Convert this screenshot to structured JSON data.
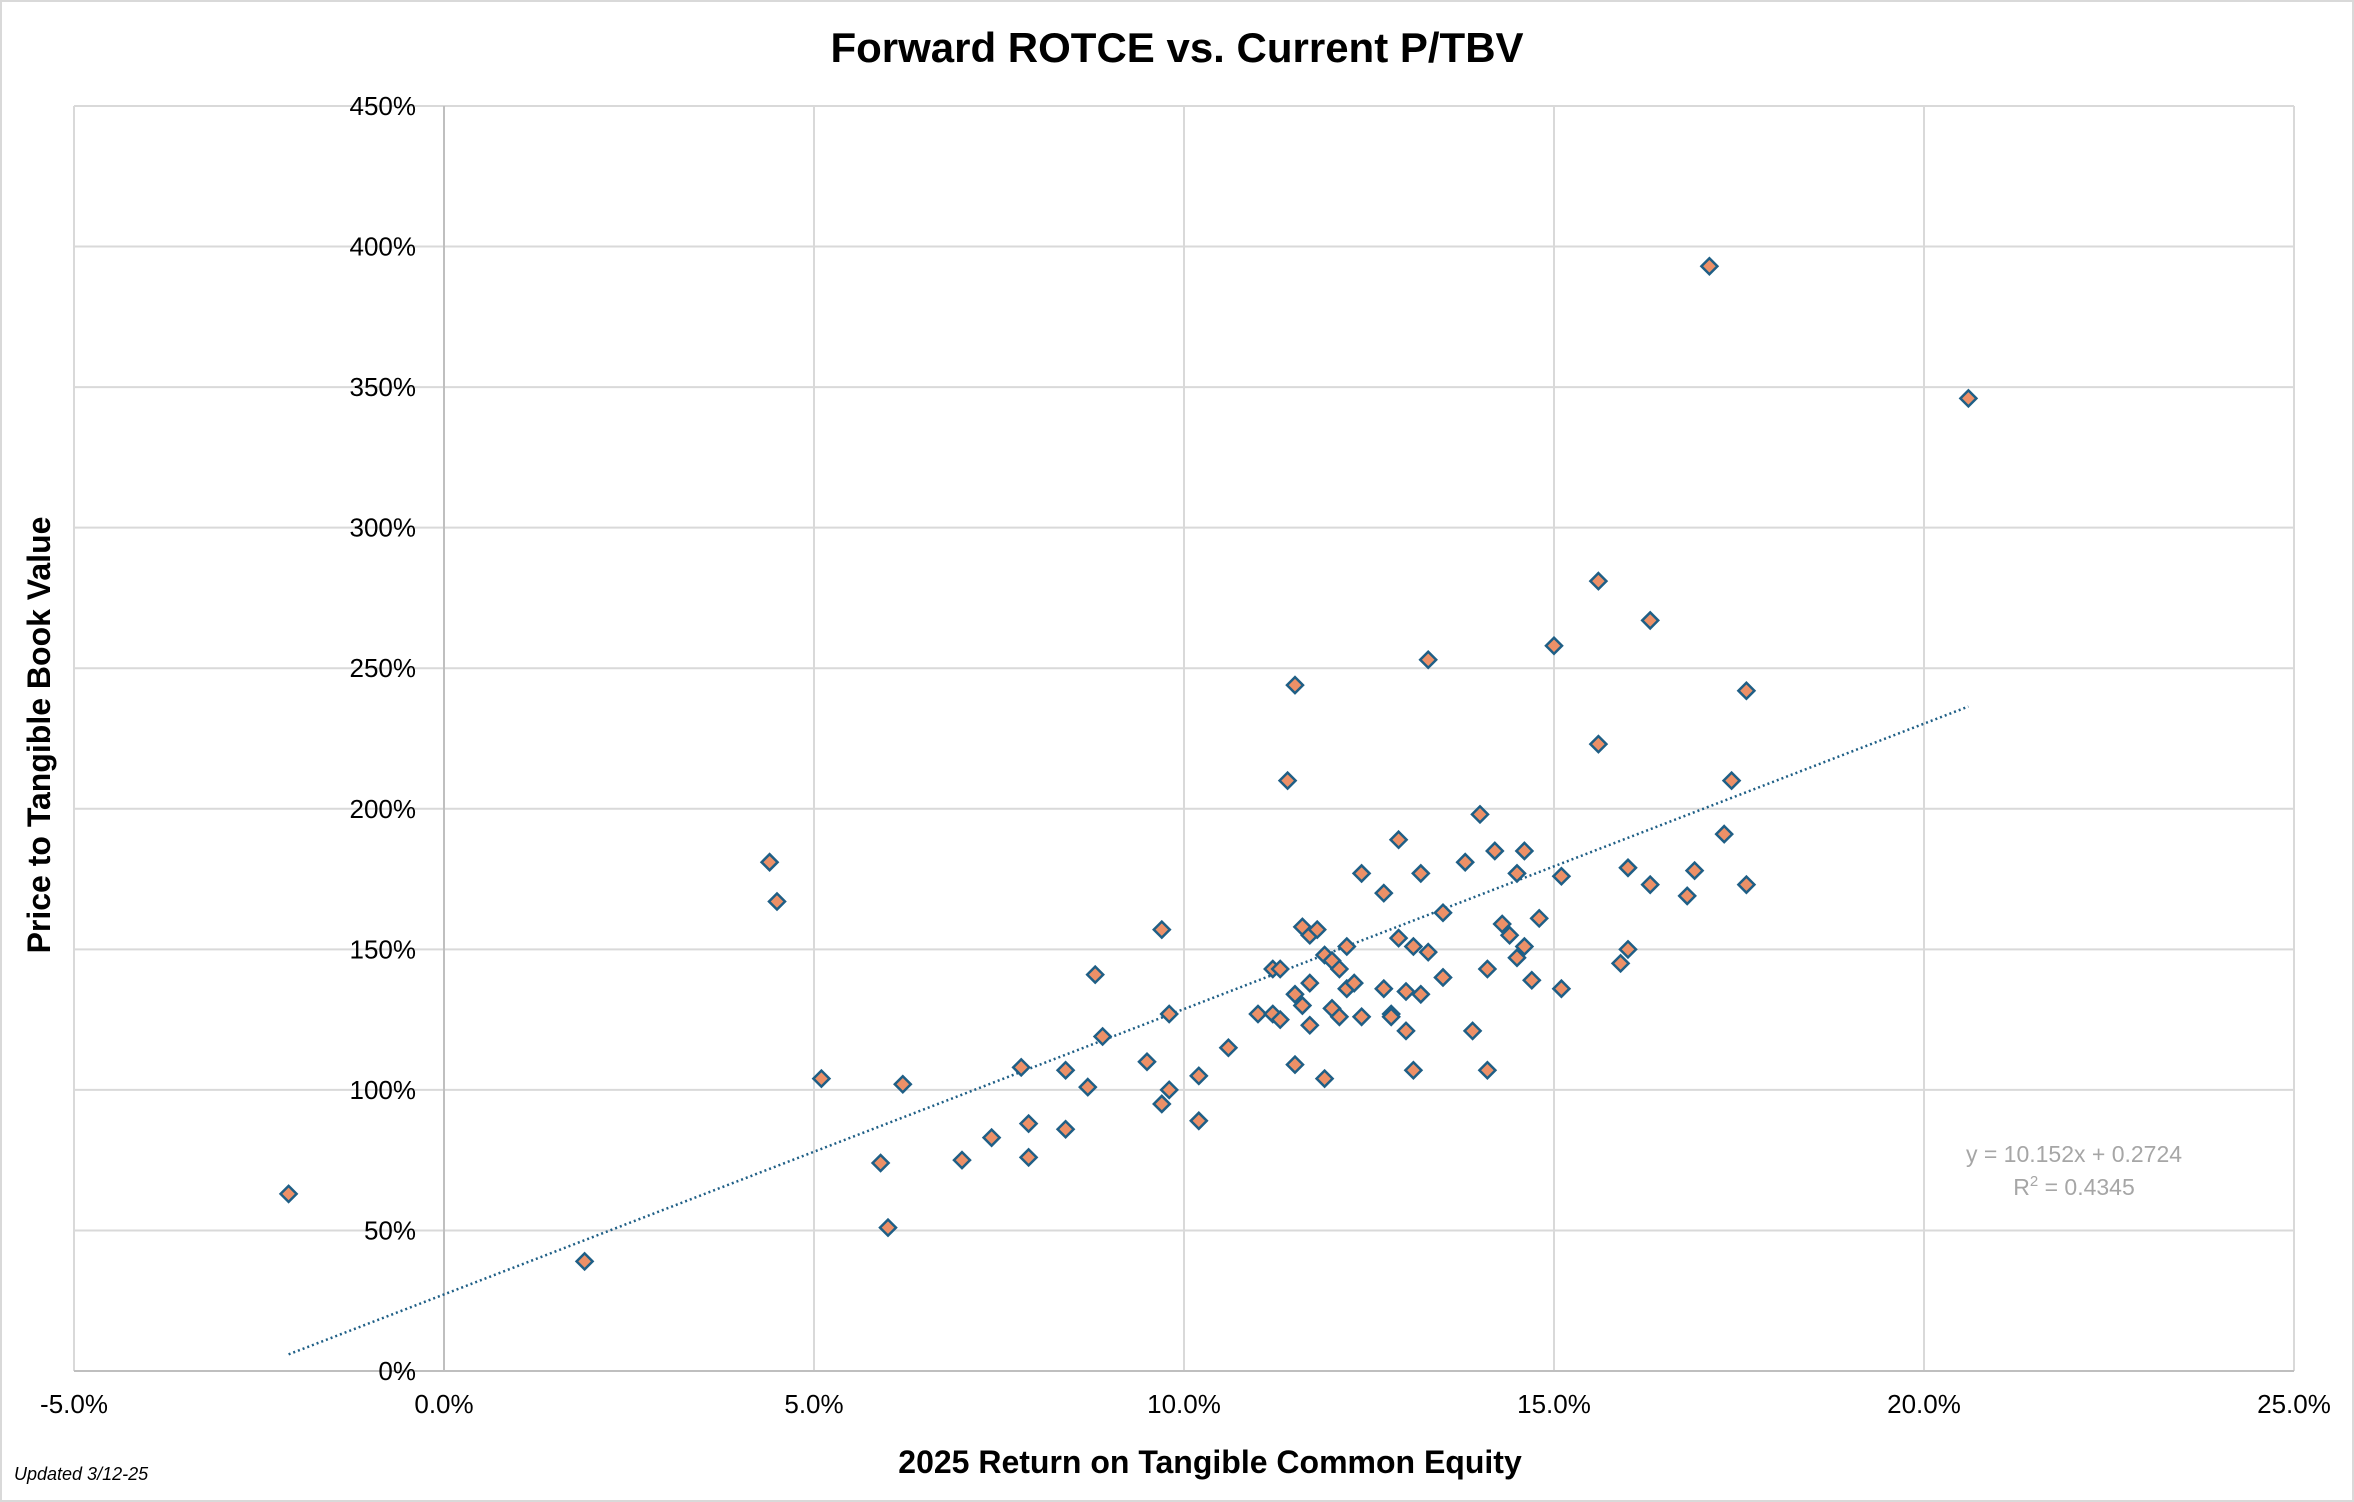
{
  "chart_data": {
    "type": "scatter",
    "title": "Forward ROTCE vs. Current P/TBV",
    "xlabel": "2025 Return on Tangible Common Equity",
    "ylabel": "Price to Tangible Book Value",
    "xlim": [
      -0.05,
      0.25
    ],
    "ylim": [
      0,
      4.5
    ],
    "x_ticks": [
      -0.05,
      0,
      0.05,
      0.1,
      0.15,
      0.2,
      0.25
    ],
    "x_tick_labels": [
      "-5.0%",
      "0.0%",
      "5.0%",
      "10.0%",
      "15.0%",
      "20.0%",
      "25.0%"
    ],
    "y_ticks": [
      0,
      0.5,
      1.0,
      1.5,
      2.0,
      2.5,
      3.0,
      3.5,
      4.0,
      4.5
    ],
    "y_tick_labels": [
      "0%",
      "50%",
      "100%",
      "150%",
      "200%",
      "250%",
      "300%",
      "350%",
      "400%",
      "450%"
    ],
    "grid": true,
    "marker": "diamond",
    "marker_fill": "#ed9067",
    "marker_stroke": "#1f5f86",
    "trendline_color": "#1f5f86",
    "trendline": {
      "type": "linear",
      "slope": 10.152,
      "intercept": 0.2724,
      "x_range": [
        -0.021,
        0.206
      ],
      "style": "dotted",
      "equation": "y = 10.152x + 0.2724",
      "r2_prefix": "R",
      "r2_sup": "2",
      "r2_suffix": " = 0.4345"
    },
    "series": [
      {
        "points": [
          [
            -0.021,
            0.63
          ],
          [
            0.019,
            0.39
          ],
          [
            0.044,
            1.81
          ],
          [
            0.045,
            1.67
          ],
          [
            0.051,
            1.04
          ],
          [
            0.059,
            0.74
          ],
          [
            0.06,
            0.51
          ],
          [
            0.062,
            1.02
          ],
          [
            0.07,
            0.75
          ],
          [
            0.074,
            0.83
          ],
          [
            0.078,
            1.08
          ],
          [
            0.079,
            0.88
          ],
          [
            0.079,
            0.76
          ],
          [
            0.084,
            1.07
          ],
          [
            0.084,
            0.86
          ],
          [
            0.087,
            1.01
          ],
          [
            0.088,
            1.41
          ],
          [
            0.089,
            1.19
          ],
          [
            0.095,
            1.1
          ],
          [
            0.097,
            1.57
          ],
          [
            0.097,
            0.95
          ],
          [
            0.098,
            1.0
          ],
          [
            0.098,
            1.27
          ],
          [
            0.102,
            1.05
          ],
          [
            0.102,
            0.89
          ],
          [
            0.106,
            1.15
          ],
          [
            0.11,
            1.27
          ],
          [
            0.112,
            1.27
          ],
          [
            0.112,
            1.43
          ],
          [
            0.113,
            1.43
          ],
          [
            0.113,
            1.25
          ],
          [
            0.114,
            2.1
          ],
          [
            0.115,
            2.44
          ],
          [
            0.115,
            1.34
          ],
          [
            0.115,
            1.09
          ],
          [
            0.116,
            1.3
          ],
          [
            0.116,
            1.58
          ],
          [
            0.117,
            1.55
          ],
          [
            0.117,
            1.38
          ],
          [
            0.117,
            1.23
          ],
          [
            0.118,
            1.57
          ],
          [
            0.119,
            1.48
          ],
          [
            0.119,
            1.04
          ],
          [
            0.12,
            1.46
          ],
          [
            0.12,
            1.29
          ],
          [
            0.121,
            1.43
          ],
          [
            0.121,
            1.26
          ],
          [
            0.122,
            1.51
          ],
          [
            0.122,
            1.36
          ],
          [
            0.123,
            1.38
          ],
          [
            0.124,
            1.77
          ],
          [
            0.124,
            1.26
          ],
          [
            0.127,
            1.7
          ],
          [
            0.127,
            1.36
          ],
          [
            0.128,
            1.27
          ],
          [
            0.128,
            1.26
          ],
          [
            0.129,
            1.54
          ],
          [
            0.129,
            1.89
          ],
          [
            0.13,
            1.35
          ],
          [
            0.13,
            1.21
          ],
          [
            0.131,
            1.51
          ],
          [
            0.131,
            1.07
          ],
          [
            0.132,
            1.34
          ],
          [
            0.132,
            1.77
          ],
          [
            0.133,
            1.49
          ],
          [
            0.133,
            2.53
          ],
          [
            0.135,
            1.63
          ],
          [
            0.135,
            1.4
          ],
          [
            0.138,
            1.81
          ],
          [
            0.139,
            1.21
          ],
          [
            0.14,
            1.98
          ],
          [
            0.141,
            1.43
          ],
          [
            0.141,
            1.07
          ],
          [
            0.142,
            1.85
          ],
          [
            0.143,
            1.59
          ],
          [
            0.144,
            1.55
          ],
          [
            0.145,
            1.77
          ],
          [
            0.145,
            1.47
          ],
          [
            0.146,
            1.85
          ],
          [
            0.146,
            1.51
          ],
          [
            0.147,
            1.39
          ],
          [
            0.148,
            1.61
          ],
          [
            0.15,
            2.58
          ],
          [
            0.151,
            1.36
          ],
          [
            0.151,
            1.76
          ],
          [
            0.156,
            2.81
          ],
          [
            0.156,
            2.23
          ],
          [
            0.159,
            1.45
          ],
          [
            0.16,
            1.79
          ],
          [
            0.16,
            1.5
          ],
          [
            0.163,
            1.73
          ],
          [
            0.163,
            2.67
          ],
          [
            0.168,
            1.69
          ],
          [
            0.169,
            1.78
          ],
          [
            0.171,
            3.93
          ],
          [
            0.173,
            1.91
          ],
          [
            0.174,
            2.1
          ],
          [
            0.176,
            2.42
          ],
          [
            0.176,
            1.73
          ],
          [
            0.206,
            3.46
          ]
        ]
      }
    ]
  },
  "footnote": "Updated 3/12-25"
}
